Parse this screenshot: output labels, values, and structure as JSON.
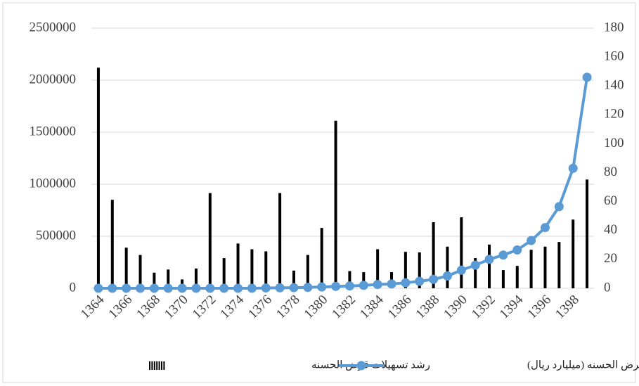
{
  "chart_data": {
    "type": "combo",
    "categories": [
      "1364",
      null,
      "1366",
      null,
      "1368",
      null,
      "1370",
      null,
      "1372",
      null,
      "1374",
      null,
      "1376",
      null,
      "1378",
      null,
      "1380",
      null,
      "1382",
      null,
      "1384",
      null,
      "1386",
      null,
      "1388",
      null,
      "1390",
      null,
      "1392",
      null,
      "1394",
      null,
      "1396",
      null,
      "1398",
      null
    ],
    "series": [
      {
        "name": "رشد تسهیلات قرض الحسنه",
        "type": "bar",
        "color": "#000000",
        "values": [
          2120000,
          850000,
          390000,
          320000,
          150000,
          180000,
          85000,
          190000,
          915000,
          290000,
          430000,
          375000,
          355000,
          915000,
          170000,
          320000,
          580000,
          1610000,
          165000,
          155000,
          375000,
          155000,
          350000,
          345000,
          635000,
          400000,
          682000,
          290000,
          420000,
          175000,
          215000,
          370000,
          400000,
          445000,
          660000,
          1045000
        ]
      },
      {
        "name": "قرض الحسنه (میلیارد ریال)",
        "type": "line",
        "axis": "y2",
        "color": "#5b9bd5",
        "values": [
          0,
          0,
          0,
          0,
          0,
          0,
          0,
          0,
          0,
          0,
          0,
          0,
          0.2,
          0.3,
          0.4,
          0.6,
          0.9,
          1.3,
          1.6,
          2,
          2.6,
          3,
          3.8,
          4.8,
          6.2,
          8.5,
          12.5,
          16,
          20,
          23,
          26.5,
          33,
          42,
          56.5,
          83,
          146
        ]
      }
    ],
    "ylim": [
      0,
      2500000
    ],
    "yticks": [
      0,
      500000,
      1000000,
      1500000,
      2000000,
      2500000
    ],
    "y2lim": [
      0,
      180
    ],
    "y2ticks": [
      0,
      20,
      40,
      60,
      80,
      100,
      120,
      140,
      160,
      180
    ],
    "grid": true
  }
}
